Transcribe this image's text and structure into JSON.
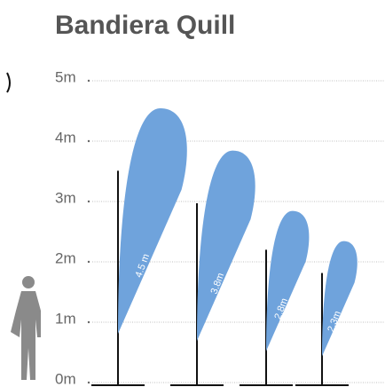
{
  "chart_data": {
    "type": "flag",
    "title": "Bandiera Quill",
    "values": [
      4.5,
      3.8,
      2.8,
      2.3
    ],
    "value_labels": [
      "4.5 m",
      "3.8m",
      "2.8m",
      "2.3m"
    ],
    "color": "#6fa3dc",
    "ylim": [
      0,
      5
    ],
    "yticks": [
      {
        "value": 0,
        "label": "0m"
      },
      {
        "value": 1,
        "label": "1m"
      },
      {
        "value": 2,
        "label": "2m"
      },
      {
        "value": 3,
        "label": "3m"
      },
      {
        "value": 4,
        "label": "4m"
      },
      {
        "value": 5,
        "label": "5m"
      }
    ],
    "grid": true
  }
}
